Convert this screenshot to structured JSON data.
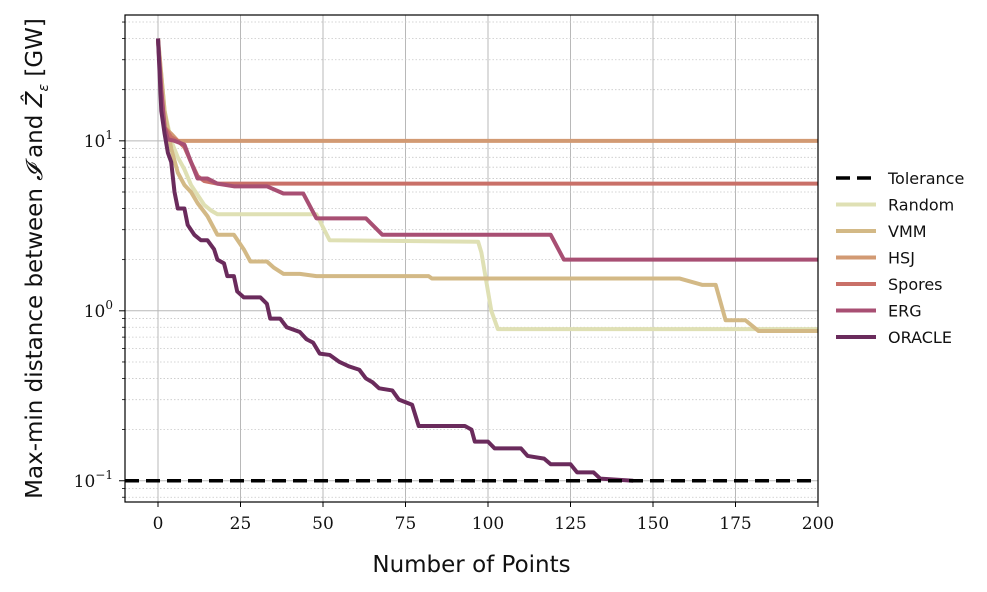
{
  "chart_data": {
    "type": "line",
    "xlabel": "Number of Points",
    "ylabel": "Max-min distance between 𝓘 and Ẑ_ε [GW]",
    "y_scale": "log",
    "xlim": [
      -10,
      200
    ],
    "ylim": [
      0.075,
      55
    ],
    "x_ticks": [
      "0",
      "25",
      "50",
      "75",
      "100",
      "125",
      "150",
      "175",
      "200"
    ],
    "y_ticks": [
      {
        "base": "10",
        "exp": "1",
        "value": 10
      },
      {
        "base": "10",
        "exp": "0",
        "value": 1
      },
      {
        "base": "10",
        "exp": "−1",
        "value": 0.1
      }
    ],
    "grid": true,
    "legend_position": "right",
    "series": [
      {
        "name": "Tolerance",
        "color": "#000000",
        "style": "dashed",
        "points": [
          [
            -10,
            0.1
          ],
          [
            200,
            0.1
          ]
        ]
      },
      {
        "name": "Random",
        "color": "#dfe0b4",
        "style": "solid",
        "points": [
          [
            0,
            40
          ],
          [
            2,
            15
          ],
          [
            4,
            10
          ],
          [
            6,
            8
          ],
          [
            8,
            6.8
          ],
          [
            10,
            5.5
          ],
          [
            12,
            4.8
          ],
          [
            14,
            4.2
          ],
          [
            16,
            3.9
          ],
          [
            18,
            3.7
          ],
          [
            48,
            3.7
          ],
          [
            52,
            2.6
          ],
          [
            97,
            2.55
          ],
          [
            98,
            2.2
          ],
          [
            101,
            1.0
          ],
          [
            103,
            0.78
          ],
          [
            200,
            0.78
          ]
        ]
      },
      {
        "name": "VMM",
        "color": "#d3b986",
        "style": "solid",
        "points": [
          [
            0,
            40
          ],
          [
            2,
            15
          ],
          [
            4,
            9
          ],
          [
            6,
            6.5
          ],
          [
            8,
            5.5
          ],
          [
            10,
            5.0
          ],
          [
            12,
            4.3
          ],
          [
            15,
            3.6
          ],
          [
            18,
            2.8
          ],
          [
            23,
            2.8
          ],
          [
            26,
            2.3
          ],
          [
            28,
            1.95
          ],
          [
            33,
            1.95
          ],
          [
            35,
            1.8
          ],
          [
            38,
            1.65
          ],
          [
            43,
            1.65
          ],
          [
            48,
            1.6
          ],
          [
            82,
            1.6
          ],
          [
            83,
            1.55
          ],
          [
            158,
            1.55
          ],
          [
            165,
            1.42
          ],
          [
            169,
            1.42
          ],
          [
            172,
            0.88
          ],
          [
            178,
            0.88
          ],
          [
            182,
            0.76
          ],
          [
            200,
            0.76
          ]
        ]
      },
      {
        "name": "HSJ",
        "color": "#d29a73",
        "style": "solid",
        "points": [
          [
            0,
            40
          ],
          [
            1,
            20
          ],
          [
            2,
            12
          ],
          [
            4,
            11
          ],
          [
            6,
            10
          ],
          [
            200,
            10
          ]
        ]
      },
      {
        "name": "Spores",
        "color": "#c97068",
        "style": "solid",
        "points": [
          [
            0,
            40
          ],
          [
            1,
            18
          ],
          [
            2,
            12
          ],
          [
            4,
            10.5
          ],
          [
            6,
            10
          ],
          [
            8,
            9.2
          ],
          [
            10,
            7.5
          ],
          [
            12,
            6.2
          ],
          [
            14,
            5.8
          ],
          [
            18,
            5.6
          ],
          [
            200,
            5.6
          ]
        ]
      },
      {
        "name": "ERG",
        "color": "#a84f73",
        "style": "solid",
        "points": [
          [
            0,
            40
          ],
          [
            1,
            20
          ],
          [
            2,
            12
          ],
          [
            3,
            10.2
          ],
          [
            5,
            10
          ],
          [
            8,
            9.5
          ],
          [
            10,
            7.5
          ],
          [
            12,
            6.0
          ],
          [
            15,
            6.0
          ],
          [
            18,
            5.6
          ],
          [
            23,
            5.4
          ],
          [
            33,
            5.4
          ],
          [
            38,
            4.9
          ],
          [
            44,
            4.9
          ],
          [
            48,
            3.5
          ],
          [
            63,
            3.5
          ],
          [
            68,
            2.8
          ],
          [
            119,
            2.8
          ],
          [
            123,
            2.0
          ],
          [
            200,
            2.0
          ]
        ]
      },
      {
        "name": "ORACLE",
        "color": "#6a2b5c",
        "style": "solid",
        "points": [
          [
            0,
            40
          ],
          [
            1,
            15
          ],
          [
            2,
            11
          ],
          [
            3,
            8.5
          ],
          [
            4,
            7.5
          ],
          [
            5,
            5.0
          ],
          [
            6,
            4.0
          ],
          [
            8,
            4.0
          ],
          [
            9,
            3.2
          ],
          [
            11,
            2.8
          ],
          [
            13,
            2.6
          ],
          [
            15,
            2.6
          ],
          [
            17,
            2.3
          ],
          [
            18,
            2.0
          ],
          [
            20,
            1.9
          ],
          [
            21,
            1.6
          ],
          [
            23,
            1.6
          ],
          [
            24,
            1.3
          ],
          [
            26,
            1.2
          ],
          [
            31,
            1.2
          ],
          [
            33,
            1.1
          ],
          [
            34,
            0.9
          ],
          [
            37,
            0.9
          ],
          [
            39,
            0.8
          ],
          [
            43,
            0.75
          ],
          [
            45,
            0.68
          ],
          [
            47,
            0.65
          ],
          [
            49,
            0.56
          ],
          [
            52,
            0.55
          ],
          [
            55,
            0.5
          ],
          [
            58,
            0.47
          ],
          [
            61,
            0.45
          ],
          [
            63,
            0.4
          ],
          [
            65,
            0.38
          ],
          [
            67,
            0.35
          ],
          [
            71,
            0.34
          ],
          [
            73,
            0.3
          ],
          [
            77,
            0.28
          ],
          [
            79,
            0.21
          ],
          [
            93,
            0.21
          ],
          [
            95,
            0.2
          ],
          [
            96,
            0.17
          ],
          [
            100,
            0.17
          ],
          [
            102,
            0.155
          ],
          [
            110,
            0.155
          ],
          [
            112,
            0.14
          ],
          [
            117,
            0.135
          ],
          [
            119,
            0.125
          ],
          [
            125,
            0.125
          ],
          [
            127,
            0.112
          ],
          [
            132,
            0.112
          ],
          [
            134,
            0.103
          ],
          [
            144,
            0.1
          ]
        ]
      }
    ]
  }
}
